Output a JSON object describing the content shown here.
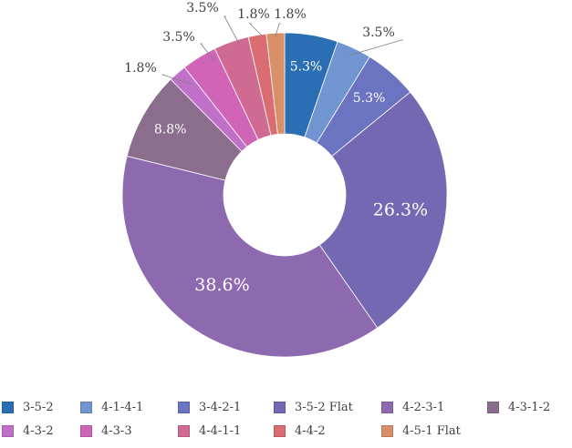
{
  "chart_data": {
    "type": "pie",
    "donut": true,
    "title": "",
    "legend_position": "bottom",
    "categories": [
      "3-5-2",
      "4-1-4-1",
      "3-4-2-1",
      "3-5-2 Flat",
      "4-2-3-1",
      "4-3-1-2",
      "4-3-2",
      "4-3-3",
      "4-4-1-1",
      "4-4-2",
      "4-5-1 Flat"
    ],
    "values": [
      5.3,
      3.5,
      5.3,
      26.3,
      38.6,
      8.8,
      1.8,
      3.5,
      3.5,
      1.8,
      1.8
    ],
    "labels": [
      "5.3%",
      "3.5%",
      "5.3%",
      "26.3%",
      "38.6%",
      "8.8%",
      "1.8%",
      "3.5%",
      "3.5%",
      "1.8%",
      "1.8%"
    ],
    "colors": [
      "#2a6fb3",
      "#7095d0",
      "#6a74c0",
      "#7468b2",
      "#8d6ab0",
      "#8b6e8e",
      "#c070c8",
      "#d065b8",
      "#cf6a92",
      "#d96d72",
      "#d79068"
    ]
  }
}
